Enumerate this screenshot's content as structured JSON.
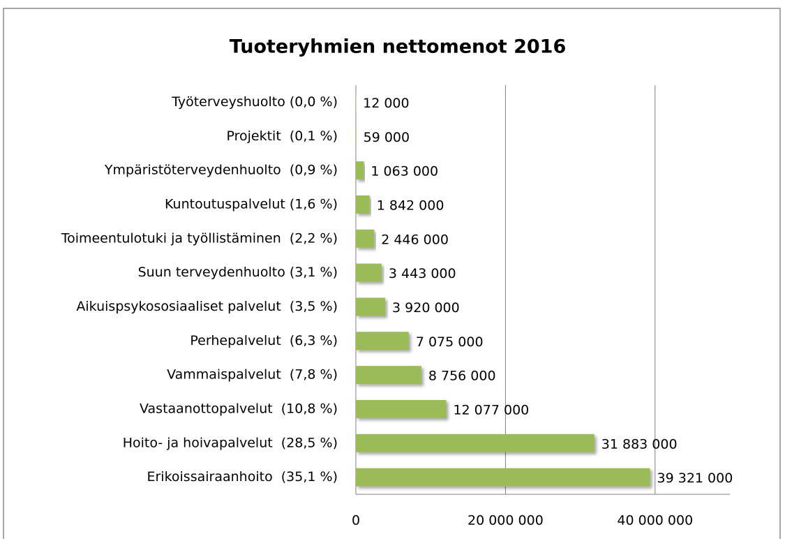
{
  "chart_data": {
    "type": "bar",
    "orientation": "horizontal",
    "title": "Tuoteryhmien nettomenot 2016",
    "categories": [
      "Työterveyshuolto (0,0 %)",
      "Projektit  (0,1 %)",
      "Ympäristöterveydenhuolto  (0,9 %)",
      "Kuntoutuspalvelut (1,6 %)",
      "Toimeentulotuki ja työllistäminen  (2,2 %)",
      "Suun terveydenhuolto (3,1 %)",
      "Aikuispsykososiaaliset palvelut  (3,5 %)",
      "Perhepalvelut  (6,3 %)",
      "Vammaispalvelut  (7,8 %)",
      "Vastaanottopalvelut  (10,8 %)",
      "Hoito- ja hoivapalvelut  (28,5 %)",
      "Erikoissairaanhoito  (35,1 %)"
    ],
    "values": [
      12000,
      59000,
      1063000,
      1842000,
      2446000,
      3443000,
      3920000,
      7075000,
      8756000,
      12077000,
      31883000,
      39321000
    ],
    "value_labels": [
      "12 000",
      "59 000",
      "1 063 000",
      "1 842 000",
      "2 446 000",
      "3 443 000",
      "3 920 000",
      "7 075 000",
      "8 756 000",
      "12 077 000",
      "31 883 000",
      "39 321 000"
    ],
    "color": "#9bbb59",
    "xlim": [
      0,
      50000000
    ],
    "xticks": [
      0,
      {
        "value": 20000000,
        "label": "20 000 000"
      },
      {
        "value": 40000000,
        "label": "40 000 000"
      }
    ],
    "grid": true
  }
}
